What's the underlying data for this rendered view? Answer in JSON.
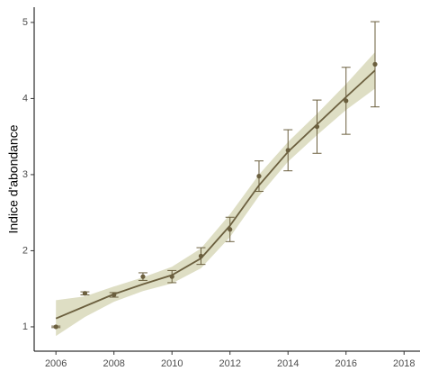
{
  "chart_data": {
    "type": "scatter",
    "y_label": "Indice d'abondance",
    "x": [
      2006,
      2007,
      2008,
      2009,
      2010,
      2011,
      2012,
      2013,
      2014,
      2015,
      2016,
      2017
    ],
    "values": [
      1.0,
      1.44,
      1.42,
      1.66,
      1.66,
      1.93,
      2.28,
      2.98,
      3.32,
      3.63,
      3.97,
      4.45
    ],
    "errors": [
      0.01,
      0.02,
      0.03,
      0.05,
      0.08,
      0.11,
      0.16,
      0.2,
      0.27,
      0.35,
      0.44,
      0.56
    ],
    "color": "#6b5f3e",
    "smooth": {
      "values": [
        1.11,
        1.27,
        1.43,
        1.56,
        1.68,
        1.9,
        2.33,
        2.86,
        3.3,
        3.66,
        4.02,
        4.37
      ],
      "lower": [
        0.88,
        1.13,
        1.33,
        1.47,
        1.57,
        1.77,
        2.18,
        2.72,
        3.17,
        3.52,
        3.85,
        4.13
      ],
      "upper": [
        1.35,
        1.4,
        1.53,
        1.65,
        1.79,
        2.03,
        2.48,
        3.0,
        3.43,
        3.8,
        4.19,
        4.61
      ],
      "color": "#6b5f3e",
      "band_color": "#dedec4"
    },
    "xlim": [
      2005.25,
      2018.55
    ],
    "xticks": [
      2006,
      2008,
      2010,
      2012,
      2014,
      2016,
      2018
    ],
    "ylim": [
      0.68,
      5.2
    ],
    "yticks": [
      1,
      2,
      3,
      4,
      5
    ],
    "grid": false
  }
}
